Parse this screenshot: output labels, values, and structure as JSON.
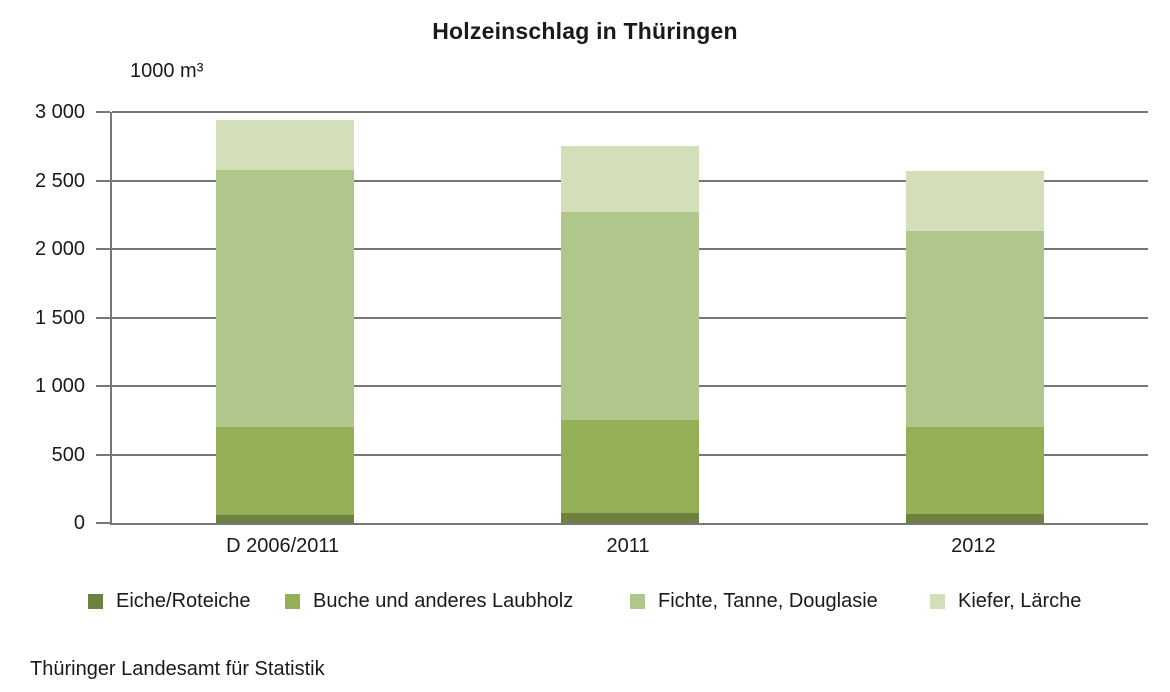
{
  "chart_data": {
    "type": "bar",
    "stacked": true,
    "title": "Holzeinschlag in Thüringen",
    "unit_label": "1000 m³",
    "xlabel": "",
    "ylabel": "1000 m³",
    "categories": [
      "D 2006/2011",
      "2011",
      "2012"
    ],
    "series": [
      {
        "name": "Eiche/Roteiche",
        "color": "#6f8140",
        "values": [
          60,
          70,
          65
        ]
      },
      {
        "name": "Buche und anderes Laubholz",
        "color": "#93b056",
        "values": [
          640,
          685,
          635
        ]
      },
      {
        "name": "Fichte, Tanne, Douglasie",
        "color": "#b0c78b",
        "values": [
          1880,
          1515,
          1430
        ]
      },
      {
        "name": "Kiefer, Lärche",
        "color": "#d2dfb8",
        "values": [
          360,
          485,
          440
        ]
      }
    ],
    "ylim": [
      0,
      3000
    ],
    "ytick_step": 500,
    "ytick_labels": [
      "3 000",
      "2 500",
      "2 000",
      "1 500",
      "1 000",
      "500",
      "0"
    ],
    "grid": true,
    "grid_color": "#777777",
    "legend_position": "bottom"
  },
  "source": "Thüringer Landesamt für Statistik"
}
